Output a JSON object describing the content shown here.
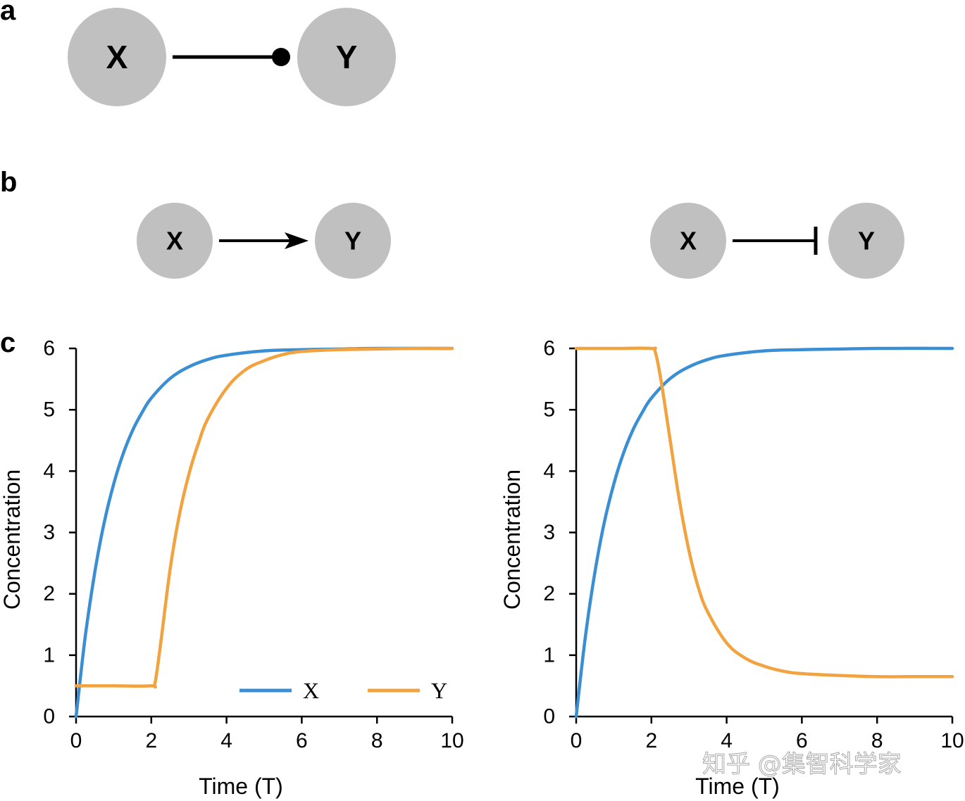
{
  "colors": {
    "node_fill": "#c0c0c0",
    "x_series": "#3a8fd4",
    "y_series": "#f2a33f",
    "line": "#000000"
  },
  "panel_a": {
    "letter": "a",
    "node_x": "X",
    "node_y": "Y",
    "edge": "circle-end"
  },
  "panel_b": {
    "letter": "b",
    "left": {
      "node_x": "X",
      "node_y": "Y",
      "edge": "arrow"
    },
    "right": {
      "node_x": "X",
      "node_y": "Y",
      "edge": "t-bar"
    }
  },
  "panel_c": {
    "letter": "c"
  },
  "watermark": "知乎 @集智科学家",
  "chart_data": [
    {
      "type": "line",
      "xlabel": "Time (T)",
      "ylabel": "Concentration",
      "xlim": [
        0,
        10
      ],
      "ylim": [
        0,
        6
      ],
      "xticks": [
        0,
        2,
        4,
        6,
        8,
        10
      ],
      "yticks": [
        0,
        1,
        2,
        3,
        4,
        5,
        6
      ],
      "legend": {
        "position": "bottom-right"
      },
      "series": [
        {
          "name": "X",
          "color": "#3a8fd4",
          "x": [
            0,
            0.25,
            0.5,
            0.75,
            1,
            1.25,
            1.5,
            1.75,
            2,
            2.5,
            3,
            3.5,
            4,
            5,
            6,
            7,
            8,
            10
          ],
          "y": [
            0,
            1.33,
            2.36,
            3.17,
            3.79,
            4.28,
            4.66,
            4.95,
            5.19,
            5.51,
            5.7,
            5.82,
            5.89,
            5.96,
            5.98,
            5.99,
            6.0,
            6.0
          ]
        },
        {
          "name": "Y",
          "color": "#f2a33f",
          "x": [
            0,
            1,
            2,
            2.1,
            2.25,
            2.5,
            2.75,
            3,
            3.25,
            3.5,
            4,
            4.5,
            5,
            5.5,
            6,
            7,
            8,
            9,
            10
          ],
          "y": [
            0.5,
            0.5,
            0.5,
            0.55,
            1.2,
            2.4,
            3.3,
            3.95,
            4.45,
            4.85,
            5.35,
            5.65,
            5.8,
            5.9,
            5.95,
            5.98,
            5.99,
            6.0,
            6.0
          ]
        }
      ]
    },
    {
      "type": "line",
      "xlabel": "Time (T)",
      "ylabel": "Concentration",
      "xlim": [
        0,
        10
      ],
      "ylim": [
        0,
        6
      ],
      "xticks": [
        0,
        2,
        4,
        6,
        8,
        10
      ],
      "yticks": [
        0,
        1,
        2,
        3,
        4,
        5,
        6
      ],
      "series": [
        {
          "name": "X",
          "color": "#3a8fd4",
          "x": [
            0,
            0.25,
            0.5,
            0.75,
            1,
            1.25,
            1.5,
            1.75,
            2,
            2.5,
            3,
            3.5,
            4,
            5,
            6,
            7,
            8,
            10
          ],
          "y": [
            0,
            1.33,
            2.36,
            3.17,
            3.79,
            4.28,
            4.66,
            4.95,
            5.19,
            5.51,
            5.7,
            5.82,
            5.89,
            5.96,
            5.98,
            5.99,
            6.0,
            6.0
          ]
        },
        {
          "name": "Y",
          "color": "#f2a33f",
          "x": [
            0,
            1,
            2,
            2.1,
            2.25,
            2.5,
            2.75,
            3,
            3.25,
            3.5,
            4,
            4.5,
            5,
            5.5,
            6,
            7,
            8,
            9,
            10
          ],
          "y": [
            6.0,
            6.0,
            6.0,
            5.95,
            5.5,
            4.5,
            3.5,
            2.7,
            2.1,
            1.7,
            1.2,
            0.95,
            0.82,
            0.74,
            0.7,
            0.67,
            0.65,
            0.65,
            0.65
          ]
        }
      ]
    }
  ]
}
